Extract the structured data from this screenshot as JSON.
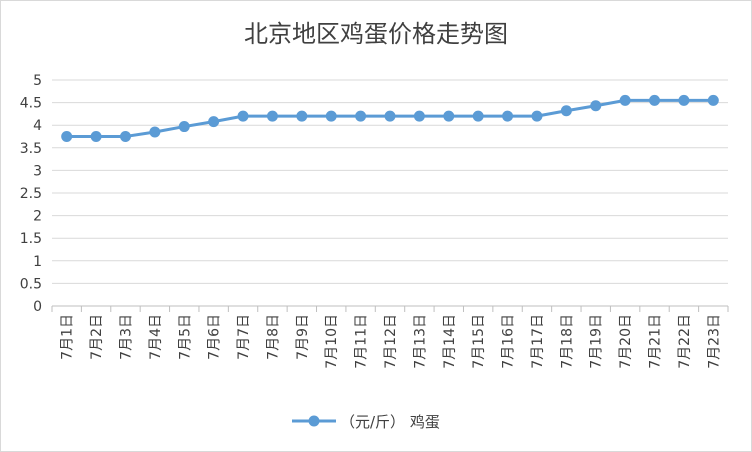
{
  "chart_data": {
    "type": "line",
    "title": "北京地区鸡蛋价格走势图",
    "categories": [
      "7月1日",
      "7月2日",
      "7月3日",
      "7月4日",
      "7月5日",
      "7月6日",
      "7月7日",
      "7月8日",
      "7月9日",
      "7月10日",
      "7月11日",
      "7月12日",
      "7月13日",
      "7月14日",
      "7月15日",
      "7月16日",
      "7月17日",
      "7月18日",
      "7月19日",
      "7月20日",
      "7月21日",
      "7月22日",
      "7月23日"
    ],
    "series": [
      {
        "name": "（元/斤） 鸡蛋",
        "color": "#5b9bd5",
        "values": [
          3.75,
          3.75,
          3.75,
          3.85,
          3.97,
          4.08,
          4.2,
          4.2,
          4.2,
          4.2,
          4.2,
          4.2,
          4.2,
          4.2,
          4.2,
          4.2,
          4.2,
          4.32,
          4.43,
          4.55,
          4.55,
          4.55,
          4.55
        ]
      }
    ],
    "ylim": [
      0,
      5
    ],
    "yticks": [
      "0",
      "0.5",
      "1",
      "1.5",
      "2",
      "2.5",
      "3",
      "3.5",
      "4",
      "4.5",
      "5"
    ],
    "grid": true,
    "legend": "bottom"
  }
}
